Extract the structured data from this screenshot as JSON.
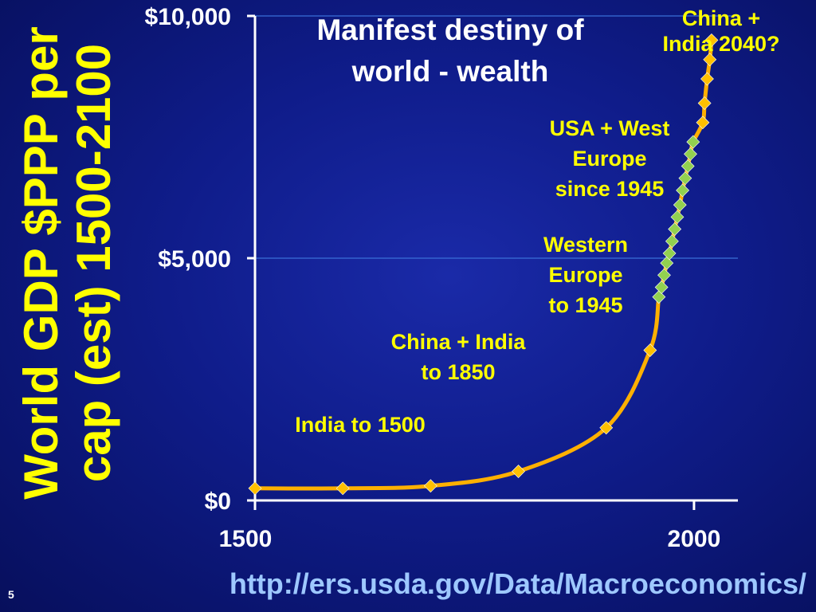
{
  "slide": {
    "number": "5",
    "source_url": "http://ers.usda.gov/Data/Macroeconomics/"
  },
  "colors": {
    "background": "#0f1c8a",
    "curve": "#ffb000",
    "gold_marker": "#ffc000",
    "green_marker": "#92d050",
    "text_yellow": "#ffff00",
    "axis": "#ffffff",
    "gridline": "#3a6fd8"
  },
  "chart_data": {
    "type": "line",
    "title": "Manifest destiny of world - wealth",
    "ylabel": "World GDP $PPP per cap (est) 1500-2100",
    "xlabel": "",
    "xlim": [
      1500,
      2050
    ],
    "ylim": [
      0,
      10000
    ],
    "x_ticks": [
      1500,
      2000
    ],
    "x_tick_labels": [
      "1500",
      "2000"
    ],
    "y_ticks": [
      0,
      5000,
      10000
    ],
    "y_tick_labels": [
      "$0",
      "$5,000",
      "$10,000"
    ],
    "grid": "horizontal",
    "series": [
      {
        "marker": "gold-diamond",
        "points": [
          {
            "x": 1500,
            "y": 250
          },
          {
            "x": 1600,
            "y": 250
          },
          {
            "x": 1700,
            "y": 300
          },
          {
            "x": 1800,
            "y": 600
          },
          {
            "x": 1900,
            "y": 1500
          },
          {
            "x": 1950,
            "y": 3100
          },
          {
            "x": 2010,
            "y": 7800
          },
          {
            "x": 2012,
            "y": 8200
          },
          {
            "x": 2015,
            "y": 8700
          },
          {
            "x": 2018,
            "y": 9100
          },
          {
            "x": 2020,
            "y": 9500
          }
        ]
      },
      {
        "marker": "green-diamond",
        "points": [
          {
            "x": 1960,
            "y": 4200
          },
          {
            "x": 1963,
            "y": 4400
          },
          {
            "x": 1966,
            "y": 4650
          },
          {
            "x": 1969,
            "y": 4900
          },
          {
            "x": 1972,
            "y": 5100
          },
          {
            "x": 1975,
            "y": 5350
          },
          {
            "x": 1978,
            "y": 5600
          },
          {
            "x": 1981,
            "y": 5850
          },
          {
            "x": 1984,
            "y": 6100
          },
          {
            "x": 1987,
            "y": 6400
          },
          {
            "x": 1990,
            "y": 6650
          },
          {
            "x": 1993,
            "y": 6900
          },
          {
            "x": 1996,
            "y": 7150
          },
          {
            "x": 1999,
            "y": 7400
          }
        ]
      }
    ],
    "annotations": [
      {
        "lines": [
          "China +",
          "India    2040?"
        ]
      },
      {
        "lines": [
          "USA + West",
          "Europe",
          "since 1945"
        ]
      },
      {
        "lines": [
          "Western",
          "Europe",
          "to 1945"
        ]
      },
      {
        "lines": [
          "China + India",
          "to 1850"
        ]
      },
      {
        "lines": [
          "India  to 1500"
        ]
      }
    ]
  }
}
